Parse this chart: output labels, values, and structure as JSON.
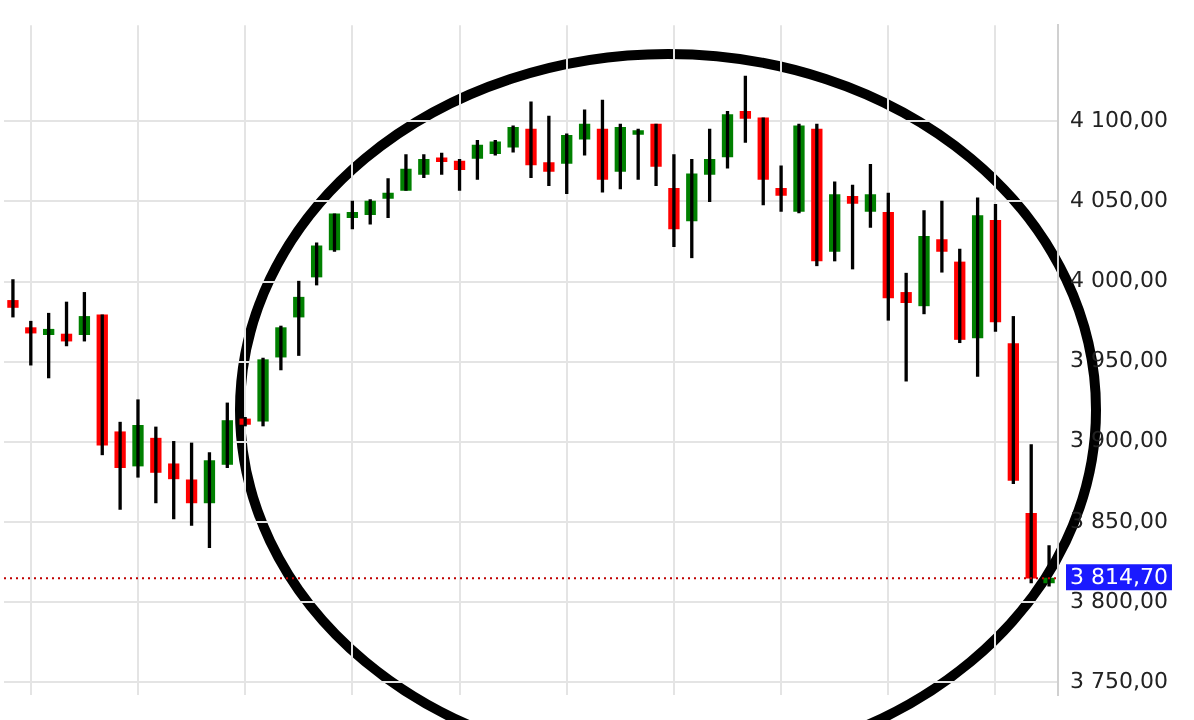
{
  "chart_data": {
    "type": "candlestick",
    "categories": [
      null,
      null,
      null,
      null,
      null,
      null,
      null,
      null,
      null,
      null,
      null,
      null,
      null,
      null,
      null,
      null,
      null,
      null,
      null,
      null,
      null,
      null,
      null,
      null,
      null,
      null,
      null,
      null,
      null,
      null,
      null,
      null,
      null,
      null,
      null,
      null,
      null,
      null,
      null,
      null,
      null,
      null,
      null,
      null,
      null,
      null,
      null,
      null,
      null,
      null,
      null,
      null,
      null,
      null,
      null,
      null,
      null,
      null,
      null
    ],
    "ohlc": [
      [
        3988,
        4001,
        3978,
        3984
      ],
      [
        3971,
        3975,
        3948,
        3968
      ],
      [
        3967,
        3980,
        3940,
        3970
      ],
      [
        3967,
        3987,
        3960,
        3963
      ],
      [
        3967,
        3993,
        3963,
        3978
      ],
      [
        3979,
        3979,
        3892,
        3898
      ],
      [
        3906,
        3912,
        3858,
        3884
      ],
      [
        3885,
        3926,
        3878,
        3910
      ],
      [
        3902,
        3909,
        3862,
        3881
      ],
      [
        3886,
        3900,
        3852,
        3877
      ],
      [
        3876,
        3899,
        3848,
        3862
      ],
      [
        3862,
        3893,
        3834,
        3888
      ],
      [
        3886,
        3924,
        3884,
        3913
      ],
      [
        3914,
        3915,
        3910,
        3911
      ],
      [
        3913,
        3952,
        3910,
        3951
      ],
      [
        3953,
        3972,
        3945,
        3971
      ],
      [
        3978,
        4000,
        3954,
        3990
      ],
      [
        4003,
        4024,
        3998,
        4022
      ],
      [
        4020,
        4042,
        4019,
        4042
      ],
      [
        4040,
        4050,
        4033,
        4043
      ],
      [
        4042,
        4051,
        4036,
        4050
      ],
      [
        4052,
        4064,
        4040,
        4055
      ],
      [
        4057,
        4079,
        4057,
        4070
      ],
      [
        4067,
        4079,
        4065,
        4076
      ],
      [
        4077,
        4080,
        4067,
        4075
      ],
      [
        4075,
        4076,
        4057,
        4070
      ],
      [
        4077,
        4088,
        4064,
        4085
      ],
      [
        4080,
        4088,
        4079,
        4087
      ],
      [
        4084,
        4097,
        4081,
        4096
      ],
      [
        4095,
        4112,
        4065,
        4073
      ],
      [
        4074,
        4103,
        4060,
        4069
      ],
      [
        4074,
        4092,
        4055,
        4091
      ],
      [
        4089,
        4107,
        4079,
        4098
      ],
      [
        4095,
        4113,
        4056,
        4064
      ],
      [
        4069,
        4098,
        4058,
        4096
      ],
      [
        4092,
        4095,
        4064,
        4094
      ],
      [
        4098,
        4098,
        4060,
        4072
      ],
      [
        4058,
        4079,
        4022,
        4033
      ],
      [
        4038,
        4076,
        4015,
        4067
      ],
      [
        4067,
        4095,
        4050,
        4076
      ],
      [
        4078,
        4106,
        4071,
        4104
      ],
      [
        4106,
        4128,
        4087,
        4102
      ],
      [
        4102,
        4102,
        4048,
        4064
      ],
      [
        4058,
        4072,
        4044,
        4054
      ],
      [
        4044,
        4098,
        4043,
        4097
      ],
      [
        4095,
        4098,
        4010,
        4013
      ],
      [
        4019,
        4062,
        4013,
        4054
      ],
      [
        4053,
        4060,
        4008,
        4049
      ],
      [
        4044,
        4073,
        4034,
        4054
      ],
      [
        4043,
        4055,
        3976,
        3990
      ],
      [
        3993,
        4005,
        3938,
        3987
      ],
      [
        3985,
        4044,
        3980,
        4028
      ],
      [
        4026,
        4050,
        4006,
        4019
      ],
      [
        4012,
        4020,
        3962,
        3964
      ],
      [
        3965,
        4052,
        3941,
        4041
      ],
      [
        4038,
        4048,
        3969,
        3975
      ],
      [
        3961,
        3978,
        3874,
        3876
      ],
      [
        3855,
        3898,
        3812,
        3815
      ],
      [
        3812,
        3835,
        3810,
        3814.7
      ]
    ],
    "colors": [
      "#ff0000",
      "#ff0000",
      "#008000",
      "#ff0000",
      "#008000",
      "#ff0000",
      "#ff0000",
      "#008000",
      "#ff0000",
      "#ff0000",
      "#ff0000",
      "#008000",
      "#008000",
      "#ff0000",
      "#008000",
      "#008000",
      "#008000",
      "#008000",
      "#008000",
      "#008000",
      "#008000",
      "#008000",
      "#008000",
      "#008000",
      "#ff0000",
      "#ff0000",
      "#008000",
      "#008000",
      "#008000",
      "#ff0000",
      "#ff0000",
      "#008000",
      "#008000",
      "#ff0000",
      "#008000",
      "#008000",
      "#ff0000",
      "#ff0000",
      "#008000",
      "#008000",
      "#008000",
      "#ff0000",
      "#ff0000",
      "#ff0000",
      "#008000",
      "#ff0000",
      "#008000",
      "#ff0000",
      "#008000",
      "#ff0000",
      "#ff0000",
      "#008000",
      "#ff0000",
      "#ff0000",
      "#008000",
      "#ff0000",
      "#ff0000",
      "#ff0000",
      "#008000"
    ],
    "ylim": [
      3742,
      4160
    ],
    "yticks": [
      {
        "value": 3750,
        "label": "3 750,00"
      },
      {
        "value": 3800,
        "label": "3 800,00"
      },
      {
        "value": 3850,
        "label": "3 850,00"
      },
      {
        "value": 3900,
        "label": "3 900,00"
      },
      {
        "value": 3950,
        "label": "3 950,00"
      },
      {
        "value": 4000,
        "label": "4 000,00"
      },
      {
        "value": 4050,
        "label": "4 050,00"
      },
      {
        "value": 4100,
        "label": "4 100,00"
      }
    ],
    "ref_lines": [
      {
        "axis": "y",
        "value": 3814.7,
        "label": "3 814,70",
        "color": "#c00000",
        "line_style": "dotted"
      }
    ],
    "grid": true,
    "tick_labels": "y"
  }
}
